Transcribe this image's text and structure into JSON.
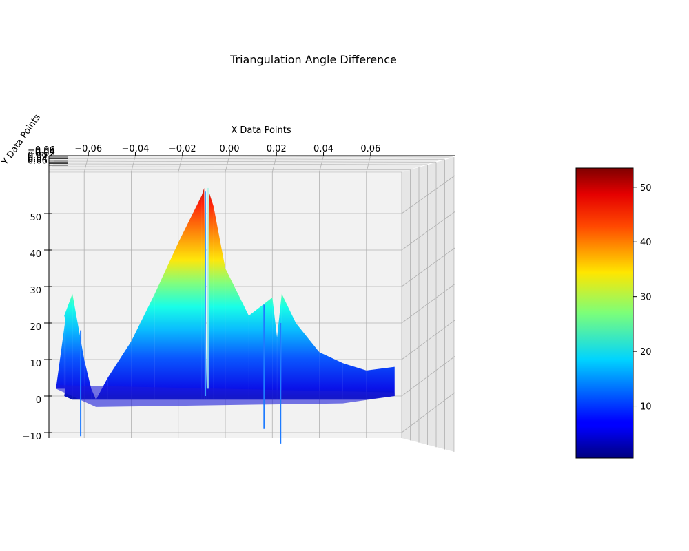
{
  "chart_data": {
    "type": "surface",
    "title": "Triangulation Angle Difference",
    "xlabel": "X Data Points",
    "ylabel": "Y Data Points",
    "zlabel": "",
    "colormap": "jet",
    "x_ticks": [
      "−0.06",
      "−0.04",
      "−0.02",
      "0.00",
      "0.02",
      "0.04",
      "0.06"
    ],
    "y_ticks": [
      "−0.06",
      "−0.04",
      "−0.02",
      "0.00",
      "0.02",
      "0.04",
      "0.06"
    ],
    "z_ticks": [
      "−10",
      "0",
      "10",
      "20",
      "30",
      "40",
      "50"
    ],
    "colorbar_ticks": [
      "10",
      "20",
      "30",
      "40",
      "50"
    ],
    "colorbar_range": [
      0.5,
      53.5
    ],
    "xlim": [
      -0.075,
      0.075
    ],
    "zlim": [
      -12,
      60
    ],
    "grid": true,
    "surface_profile": {
      "x": [
        -0.072,
        -0.068,
        -0.0685,
        -0.065,
        -0.06,
        -0.057,
        -0.055,
        -0.05,
        -0.04,
        -0.03,
        -0.02,
        -0.01,
        -0.009,
        -0.008,
        -0.007,
        -0.005,
        0.0,
        0.01,
        0.02,
        0.022,
        0.024,
        0.03,
        0.04,
        0.05,
        0.06,
        0.072
      ],
      "peak_z": [
        2,
        21,
        22,
        28,
        10,
        2,
        -1,
        5,
        15,
        28,
        42,
        55,
        57,
        2,
        56,
        52,
        35,
        22,
        27,
        16,
        28,
        20,
        12,
        9,
        7,
        8
      ],
      "base_z": [
        2,
        2,
        0,
        -1,
        -1,
        -1,
        -1,
        -1,
        -1,
        -1,
        -1,
        -1,
        -1,
        -1,
        -1,
        -1,
        -1,
        -1,
        -1,
        -1,
        -1,
        -1,
        -1,
        -1,
        -1,
        0
      ]
    },
    "spikes": [
      {
        "x": -0.0615,
        "z_top": 18,
        "z_bottom": -11
      },
      {
        "x": 0.0165,
        "z_top": 25,
        "z_bottom": -9
      },
      {
        "x": 0.0235,
        "z_top": 20,
        "z_bottom": -13
      },
      {
        "x": -0.0085,
        "z_top": 56,
        "z_bottom": 0
      }
    ]
  }
}
